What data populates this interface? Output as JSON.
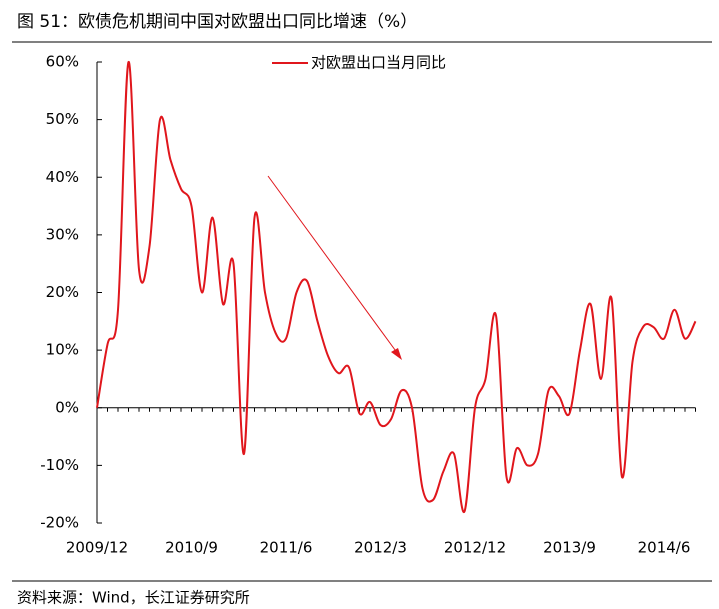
{
  "chart_data": {
    "type": "line",
    "title": "图 51：欧债危机期间中国对欧盟出口同比增速（%）",
    "source": "资料来源：Wind，长江证券研究所",
    "categories": [
      "2009/12",
      null,
      null,
      null,
      null,
      null,
      null,
      null,
      null,
      "2010/9",
      null,
      null,
      null,
      null,
      null,
      null,
      null,
      null,
      "2011/6",
      null,
      null,
      null,
      null,
      null,
      null,
      null,
      null,
      "2012/3",
      null,
      null,
      null,
      null,
      null,
      null,
      null,
      null,
      "2012/12",
      null,
      null,
      null,
      null,
      null,
      null,
      null,
      null,
      "2013/9",
      null,
      null,
      null,
      null,
      null,
      null,
      null,
      null,
      "2014/6",
      null,
      null,
      null
    ],
    "series": [
      {
        "name": "对欧盟出口当月同比",
        "color": "#e0161c",
        "values": [
          0,
          11,
          17,
          60,
          24,
          28,
          50,
          43,
          38,
          35,
          20,
          33,
          18,
          25,
          -8,
          33,
          20,
          13,
          12,
          20,
          22,
          15,
          9,
          6,
          7,
          -1,
          1,
          -3,
          -2,
          3,
          0,
          -14,
          -16,
          -11,
          -8,
          -18,
          0,
          5,
          16,
          -12,
          -7,
          -10,
          -8,
          3,
          2,
          -1,
          10,
          18,
          5,
          19,
          -12,
          8,
          14,
          14,
          12,
          17,
          12,
          15
        ]
      }
    ],
    "ylim": [
      -20,
      60
    ],
    "yticks": [
      {
        "value": -20,
        "label": "-20%"
      },
      {
        "value": -10,
        "label": "-10%"
      },
      {
        "value": 0,
        "label": "0%"
      },
      {
        "value": 10,
        "label": "10%"
      },
      {
        "value": 20,
        "label": "20%"
      },
      {
        "value": 30,
        "label": "30%"
      },
      {
        "value": 40,
        "label": "40%"
      },
      {
        "value": 50,
        "label": "50%"
      },
      {
        "value": 60,
        "label": "60%"
      }
    ],
    "legend": "top"
  }
}
